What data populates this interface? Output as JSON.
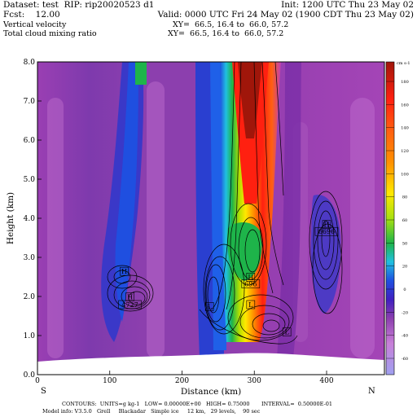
{
  "header": {
    "dataset": "Dataset: test  RIP: rip20020523 d1",
    "init": "Init: 1200 UTC Thu 23 May 02",
    "fcst": "Fcst:    12.00",
    "valid": "Valid: 0000 UTC Fri 24 May 02 (1900 CDT Thu 23 May 02)",
    "field1": "Vertical velocity",
    "xy1": "XY=  66.5, 16.4 to  66.0, 57.2",
    "field2": "Total cloud mixing ratio",
    "xy2": "XY=  66.5, 16.4 to  66.0, 57.2"
  },
  "footer": {
    "contours": "CONTOURS:  UNITS=g kg-1   LOW= 0.00000E+00   HIGH= 0.75000       INTERVAL=  0.50000E-01",
    "model_info": "Model info: V3.5.0   Grell     Blackadar   Simple ice     12 km,   29 levels,    90 sec"
  },
  "colors": {
    "purple_bg": "#8c3fae",
    "magenta": "#c040b8",
    "blue": "#1f4fe0",
    "green": "#1eb44a",
    "yellow": "#ffe800",
    "red": "#ff2010",
    "dark_red": "#a0160a",
    "terrain": "#ffffff",
    "contour": "#000000"
  },
  "chart_data": {
    "type": "heatmap",
    "title": "",
    "xlabel": "Distance (km)",
    "ylabel": "Height (km)",
    "xlim": [
      0,
      480
    ],
    "ylim": [
      0,
      8
    ],
    "x_ticks": [
      0,
      100,
      200,
      300,
      400
    ],
    "x_tick_labels": [
      "0",
      "100",
      "200",
      "300",
      "400"
    ],
    "y_ticks": [
      0,
      1,
      2,
      3,
      4,
      5,
      6,
      7,
      8
    ],
    "y_tick_labels": [
      "0.0",
      "1.0",
      "2.0",
      "3.0",
      "4.0",
      "5.0",
      "6.0",
      "7.0",
      "8.0"
    ],
    "endpoint_labels": {
      "left": "S",
      "right": "N"
    },
    "colorbar": {
      "units_label": "cm s-1",
      "levels": [
        40,
        20,
        0,
        -20,
        -40
      ],
      "level_labels": [
        "40",
        "20",
        "0",
        "-20",
        "-40"
      ],
      "extra_labels": [
        "180",
        "160",
        "140",
        "120",
        "100",
        "80",
        "60",
        "50",
        "20",
        "0",
        "-20",
        "-40",
        "-60"
      ]
    },
    "annotations": [
      {
        "text": "H",
        "x": 120,
        "y": 2.6
      },
      {
        "text": "H",
        "x": 128,
        "y": 1.95
      },
      {
        "text": "4727",
        "x": 128,
        "y": 1.75
      },
      {
        "text": "L",
        "x": 238,
        "y": 1.7
      },
      {
        "text": "L",
        "x": 295,
        "y": 1.75
      },
      {
        "text": "H",
        "x": 295,
        "y": 2.45
      },
      {
        "text": "696",
        "x": 295,
        "y": 2.28
      },
      {
        "text": "L",
        "x": 345,
        "y": 1.05
      },
      {
        "text": "H",
        "x": 400,
        "y": 3.8
      },
      {
        "text": "6696",
        "x": 400,
        "y": 3.62
      }
    ]
  }
}
